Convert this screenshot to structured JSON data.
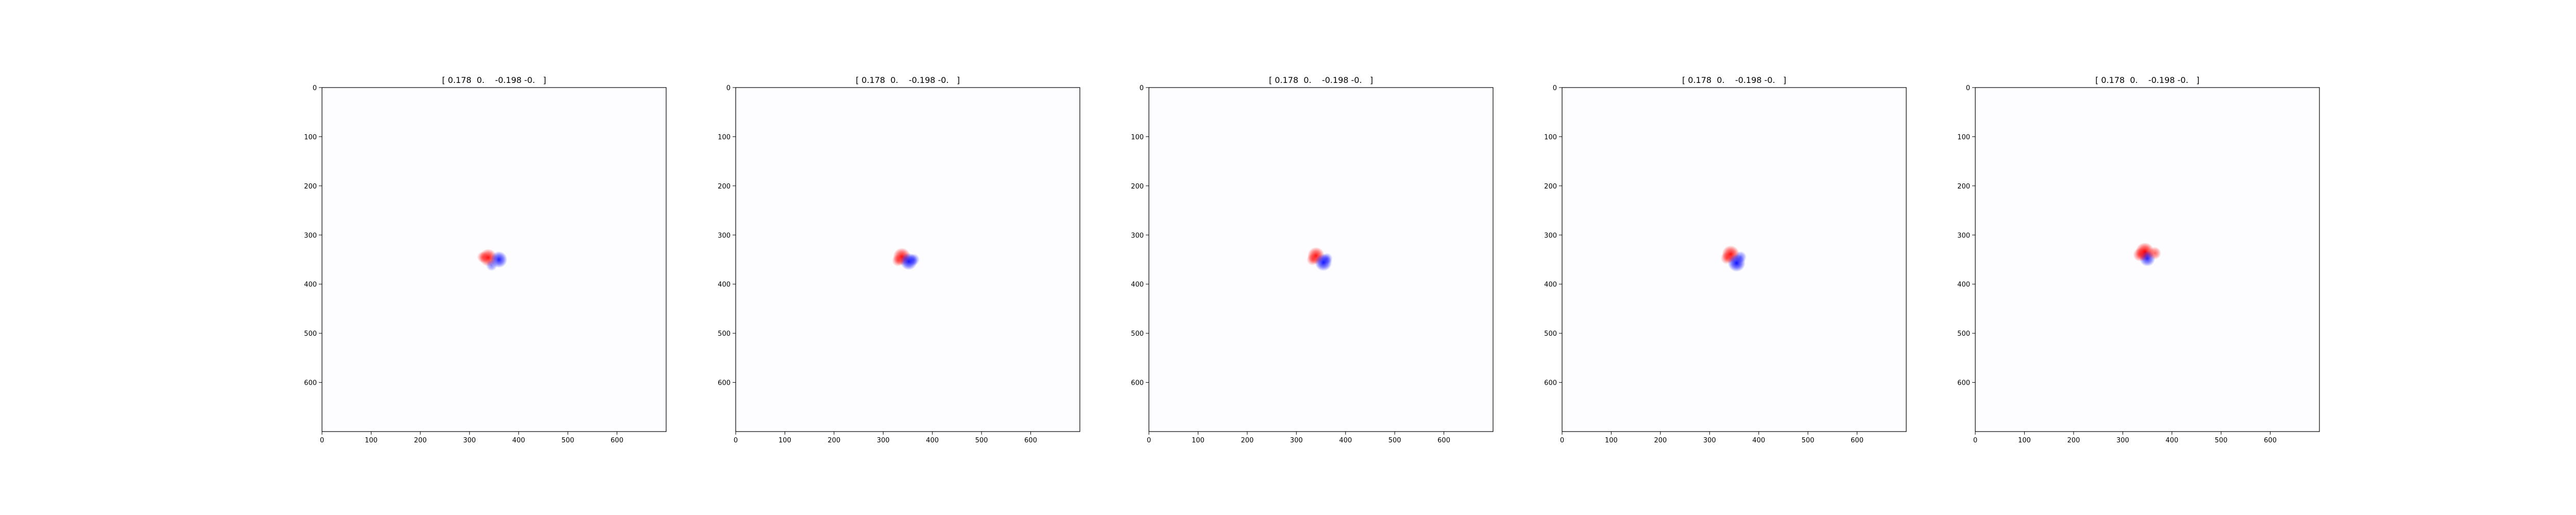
{
  "chart_data": [
    {
      "type": "heatmap",
      "title": "[ 0.178  0.    -0.198 -0.   ]",
      "xlabel": "",
      "ylabel": "",
      "xlim": [
        0,
        700
      ],
      "ylim": [
        700,
        0
      ],
      "x_ticks": [
        "0",
        "100",
        "200",
        "300",
        "400",
        "500",
        "600"
      ],
      "y_ticks": [
        "0",
        "100",
        "200",
        "300",
        "400",
        "500",
        "600"
      ],
      "grid": false,
      "colormap": "bwr",
      "blobs": [
        {
          "x": 338,
          "y": 346,
          "value": 0.9
        },
        {
          "x": 360,
          "y": 350,
          "value": -0.8
        },
        {
          "x": 327,
          "y": 345,
          "value": 0.25
        },
        {
          "x": 345,
          "y": 362,
          "value": -0.2
        }
      ]
    },
    {
      "type": "heatmap",
      "title": "[ 0.178  0.    -0.198 -0.   ]",
      "xlabel": "",
      "ylabel": "",
      "xlim": [
        0,
        700
      ],
      "ylim": [
        700,
        0
      ],
      "x_ticks": [
        "0",
        "100",
        "200",
        "300",
        "400",
        "500",
        "600"
      ],
      "y_ticks": [
        "0",
        "100",
        "200",
        "300",
        "400",
        "500",
        "600"
      ],
      "grid": false,
      "colormap": "bwr",
      "blobs": [
        {
          "x": 338,
          "y": 344,
          "value": 0.9
        },
        {
          "x": 352,
          "y": 354,
          "value": -0.85
        },
        {
          "x": 330,
          "y": 352,
          "value": 0.3
        },
        {
          "x": 362,
          "y": 350,
          "value": -0.3
        }
      ]
    },
    {
      "type": "heatmap",
      "title": "[ 0.178  0.    -0.198 -0.   ]",
      "xlabel": "",
      "ylabel": "",
      "xlim": [
        0,
        700
      ],
      "ylim": [
        700,
        0
      ],
      "x_ticks": [
        "0",
        "100",
        "200",
        "300",
        "400",
        "500",
        "600"
      ],
      "y_ticks": [
        "0",
        "100",
        "200",
        "300",
        "400",
        "500",
        "600"
      ],
      "grid": false,
      "colormap": "bwr",
      "blobs": [
        {
          "x": 340,
          "y": 342,
          "value": 0.85
        },
        {
          "x": 355,
          "y": 356,
          "value": -0.85
        },
        {
          "x": 333,
          "y": 350,
          "value": 0.3
        },
        {
          "x": 362,
          "y": 348,
          "value": -0.25
        }
      ]
    },
    {
      "type": "heatmap",
      "title": "[ 0.178  0.    -0.198 -0.   ]",
      "xlabel": "",
      "ylabel": "",
      "xlim": [
        0,
        700
      ],
      "ylim": [
        700,
        0
      ],
      "x_ticks": [
        "0",
        "100",
        "200",
        "300",
        "400",
        "500",
        "600"
      ],
      "y_ticks": [
        "0",
        "100",
        "200",
        "300",
        "400",
        "500",
        "600"
      ],
      "grid": false,
      "colormap": "bwr",
      "blobs": [
        {
          "x": 343,
          "y": 339,
          "value": 0.9
        },
        {
          "x": 355,
          "y": 357,
          "value": -0.9
        },
        {
          "x": 335,
          "y": 347,
          "value": 0.35
        },
        {
          "x": 363,
          "y": 345,
          "value": -0.3
        }
      ]
    },
    {
      "type": "heatmap",
      "title": "[ 0.178  0.    -0.198 -0.   ]",
      "xlabel": "",
      "ylabel": "",
      "xlim": [
        0,
        700
      ],
      "ylim": [
        700,
        0
      ],
      "x_ticks": [
        "0",
        "100",
        "200",
        "300",
        "400",
        "500",
        "600"
      ],
      "y_ticks": [
        "0",
        "100",
        "200",
        "300",
        "400",
        "500",
        "600"
      ],
      "grid": false,
      "colormap": "bwr",
      "blobs": [
        {
          "x": 345,
          "y": 334,
          "value": 1.0
        },
        {
          "x": 350,
          "y": 348,
          "value": -0.7
        },
        {
          "x": 335,
          "y": 340,
          "value": 0.5
        },
        {
          "x": 365,
          "y": 337,
          "value": 0.4
        }
      ]
    }
  ],
  "colors": {
    "positive": "#ff0000",
    "negative": "#0000ff",
    "axis": "#000000",
    "background": "#fdfdff"
  }
}
